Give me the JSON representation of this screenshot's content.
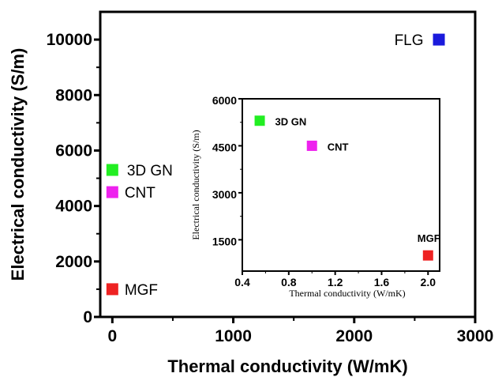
{
  "chart_data": [
    {
      "type": "scatter",
      "xlabel": "Thermal conductivity (W/mK)",
      "ylabel": "Electrical conductivity (S/m)",
      "xlim": [
        -100,
        3000
      ],
      "ylim": [
        0,
        11000
      ],
      "xticks": [
        "0",
        "1000",
        "2000",
        "3000"
      ],
      "yticks": [
        "0",
        "2000",
        "4000",
        "6000",
        "8000",
        "10000"
      ],
      "points": [
        {
          "label": "FLG",
          "x": 2700,
          "y": 10000,
          "color": "#1a1adc"
        },
        {
          "label": "3D GN",
          "x": 0,
          "y": 5300,
          "color": "#22ee22"
        },
        {
          "label": "CNT",
          "x": 0,
          "y": 4500,
          "color": "#ee22ee"
        },
        {
          "label": "MGF",
          "x": 0,
          "y": 1000,
          "color": "#ee2222"
        }
      ]
    },
    {
      "type": "scatter",
      "xlabel": "Thermal conductivity (W/mK)",
      "ylabel": "Electrical conductivity (S/m)",
      "xlim": [
        0.4,
        2.1
      ],
      "ylim": [
        500,
        6000
      ],
      "xticks": [
        "0.4",
        "0.8",
        "1.2",
        "1.6",
        "2.0"
      ],
      "yticks": [
        "1500",
        "3000",
        "4500",
        "6000"
      ],
      "points": [
        {
          "label": "3D GN",
          "x": 0.55,
          "y": 5300,
          "color": "#22ee22"
        },
        {
          "label": "CNT",
          "x": 1.0,
          "y": 4500,
          "color": "#ee22ee"
        },
        {
          "label": "MGF",
          "x": 2.0,
          "y": 1000,
          "color": "#ee2222"
        }
      ]
    }
  ]
}
